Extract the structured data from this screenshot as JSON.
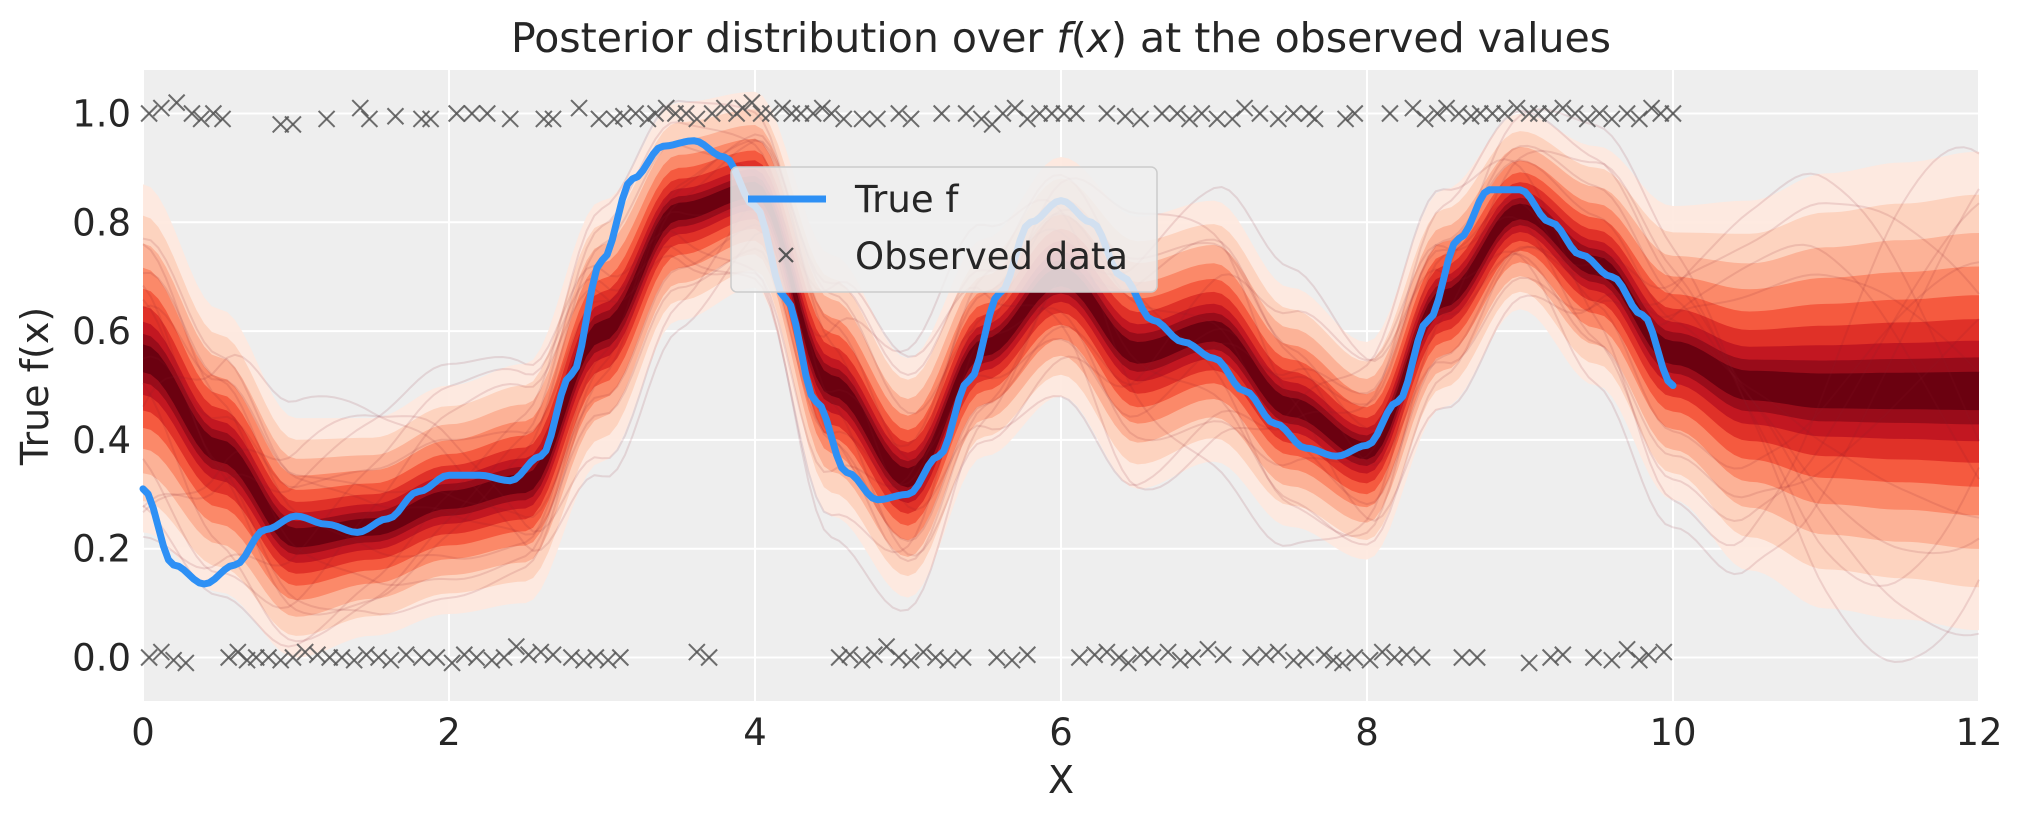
{
  "chart_data": {
    "type": "line",
    "title_parts": [
      "Posterior distribution over ",
      "f",
      "(",
      "x",
      ")",
      " at the observed values"
    ],
    "xlabel": "X",
    "ylabel": "True f(x)",
    "xlim": [
      0,
      12
    ],
    "ylim": [
      -0.08,
      1.08
    ],
    "xticks": [
      0,
      2,
      4,
      6,
      8,
      10,
      12
    ],
    "xtick_labels": [
      "0",
      "2",
      "4",
      "6",
      "8",
      "10",
      "12"
    ],
    "yticks": [
      0.0,
      0.2,
      0.4,
      0.6,
      0.8,
      1.0
    ],
    "ytick_labels": [
      "0.0",
      "0.2",
      "0.4",
      "0.6",
      "0.8",
      "1.0"
    ],
    "grid": true,
    "legend_position": "upper-center",
    "legend": [
      {
        "label": "True f",
        "kind": "line"
      },
      {
        "label": "Observed data",
        "kind": "marker"
      }
    ],
    "colors": {
      "background": "#eeeeee",
      "grid": "#ffffff",
      "true_f": "#2e90f5",
      "observed": "#555555",
      "band_light": "#fde3d9",
      "band_mid": "#f0492f",
      "band_dark": "#6b0011",
      "sample_lines": "#8b2030"
    },
    "true_f": {
      "name": "True f",
      "x": [
        0,
        0.2,
        0.4,
        0.6,
        0.8,
        1.0,
        1.2,
        1.4,
        1.6,
        1.8,
        2.0,
        2.2,
        2.4,
        2.6,
        2.8,
        3.0,
        3.2,
        3.4,
        3.6,
        3.8,
        4.0,
        4.2,
        4.4,
        4.6,
        4.8,
        5.0,
        5.2,
        5.4,
        5.6,
        5.8,
        6.0,
        6.2,
        6.4,
        6.6,
        6.8,
        7.0,
        7.2,
        7.4,
        7.6,
        7.8,
        8.0,
        8.2,
        8.4,
        8.6,
        8.8,
        9.0,
        9.2,
        9.4,
        9.6,
        9.8,
        10.0
      ],
      "y": [
        0.31,
        0.17,
        0.135,
        0.17,
        0.235,
        0.26,
        0.245,
        0.23,
        0.255,
        0.305,
        0.335,
        0.335,
        0.325,
        0.37,
        0.52,
        0.73,
        0.88,
        0.94,
        0.95,
        0.92,
        0.83,
        0.66,
        0.47,
        0.34,
        0.29,
        0.3,
        0.37,
        0.51,
        0.67,
        0.8,
        0.84,
        0.8,
        0.7,
        0.62,
        0.58,
        0.55,
        0.49,
        0.43,
        0.385,
        0.37,
        0.39,
        0.47,
        0.62,
        0.77,
        0.86,
        0.86,
        0.8,
        0.74,
        0.7,
        0.63,
        0.5
      ]
    },
    "posterior": {
      "x": [
        0,
        0.5,
        1.0,
        1.5,
        2.0,
        2.5,
        3.0,
        3.5,
        4.0,
        4.5,
        5.0,
        5.5,
        6.0,
        6.5,
        7.0,
        7.5,
        8.0,
        8.5,
        9.0,
        9.5,
        10.0,
        10.5,
        11.0,
        11.5,
        12.0
      ],
      "median": [
        0.55,
        0.38,
        0.22,
        0.24,
        0.29,
        0.32,
        0.6,
        0.82,
        0.86,
        0.5,
        0.33,
        0.57,
        0.7,
        0.56,
        0.6,
        0.46,
        0.38,
        0.66,
        0.82,
        0.72,
        0.56,
        0.5,
        0.49,
        0.49,
        0.49
      ],
      "halfwidth": [
        0.32,
        0.26,
        0.22,
        0.2,
        0.21,
        0.22,
        0.24,
        0.2,
        0.18,
        0.24,
        0.22,
        0.2,
        0.22,
        0.25,
        0.24,
        0.22,
        0.2,
        0.2,
        0.18,
        0.22,
        0.27,
        0.34,
        0.4,
        0.42,
        0.44
      ]
    },
    "observed": {
      "name": "Observed data",
      "points": [
        [
          0.04,
          1.0
        ],
        [
          0.12,
          1.01
        ],
        [
          0.22,
          1.02
        ],
        [
          0.32,
          1.0
        ],
        [
          0.38,
          0.99
        ],
        [
          0.46,
          1.0
        ],
        [
          0.52,
          0.99
        ],
        [
          0.9,
          0.98
        ],
        [
          0.98,
          0.98
        ],
        [
          1.2,
          0.99
        ],
        [
          1.42,
          1.01
        ],
        [
          1.48,
          0.99
        ],
        [
          1.65,
          0.995
        ],
        [
          1.82,
          0.99
        ],
        [
          1.88,
          0.99
        ],
        [
          2.05,
          1.0
        ],
        [
          2.15,
          1.0
        ],
        [
          2.25,
          1.0
        ],
        [
          2.4,
          0.99
        ],
        [
          2.62,
          0.99
        ],
        [
          2.68,
          0.99
        ],
        [
          2.85,
          1.01
        ],
        [
          2.98,
          0.99
        ],
        [
          3.08,
          0.99
        ],
        [
          3.14,
          0.995
        ],
        [
          3.22,
          1.0
        ],
        [
          3.3,
          0.99
        ],
        [
          3.35,
          1.0
        ],
        [
          3.42,
          1.01
        ],
        [
          3.48,
          1.0
        ],
        [
          3.55,
          1.0
        ],
        [
          3.62,
          0.99
        ],
        [
          3.72,
          1.0
        ],
        [
          3.8,
          1.01
        ],
        [
          3.88,
          1.0
        ],
        [
          3.92,
          1.01
        ],
        [
          3.98,
          1.02
        ],
        [
          4.04,
          1.0
        ],
        [
          4.1,
          1.0
        ],
        [
          4.18,
          1.01
        ],
        [
          4.24,
          1.0
        ],
        [
          4.3,
          1.0
        ],
        [
          4.38,
          1.0
        ],
        [
          4.44,
          1.01
        ],
        [
          4.5,
          1.0
        ],
        [
          4.58,
          0.99
        ],
        [
          4.7,
          0.99
        ],
        [
          4.8,
          0.99
        ],
        [
          4.94,
          1.0
        ],
        [
          5.02,
          0.99
        ],
        [
          5.22,
          1.0
        ],
        [
          5.38,
          1.0
        ],
        [
          5.48,
          0.99
        ],
        [
          5.55,
          0.98
        ],
        [
          5.62,
          1.0
        ],
        [
          5.7,
          1.01
        ],
        [
          5.78,
          0.99
        ],
        [
          5.86,
          1.0
        ],
        [
          5.94,
          1.0
        ],
        [
          6.02,
          1.0
        ],
        [
          6.1,
          1.0
        ],
        [
          6.3,
          1.0
        ],
        [
          6.42,
          0.995
        ],
        [
          6.52,
          0.99
        ],
        [
          6.66,
          1.0
        ],
        [
          6.76,
          1.0
        ],
        [
          6.84,
          0.99
        ],
        [
          6.92,
          1.0
        ],
        [
          7.02,
          0.99
        ],
        [
          7.12,
          0.99
        ],
        [
          7.2,
          1.01
        ],
        [
          7.3,
          1.0
        ],
        [
          7.42,
          0.99
        ],
        [
          7.52,
          1.0
        ],
        [
          7.62,
          1.0
        ],
        [
          7.66,
          0.99
        ],
        [
          7.86,
          0.99
        ],
        [
          7.92,
          1.0
        ],
        [
          8.15,
          1.0
        ],
        [
          8.3,
          1.01
        ],
        [
          8.38,
          0.99
        ],
        [
          8.46,
          1.0
        ],
        [
          8.52,
          1.01
        ],
        [
          8.6,
          1.0
        ],
        [
          8.68,
          0.995
        ],
        [
          8.74,
          1.0
        ],
        [
          8.82,
          1.0
        ],
        [
          8.9,
          1.0
        ],
        [
          8.98,
          1.01
        ],
        [
          9.06,
          1.0
        ],
        [
          9.12,
          1.0
        ],
        [
          9.2,
          1.0
        ],
        [
          9.28,
          1.01
        ],
        [
          9.36,
          1.0
        ],
        [
          9.44,
          0.99
        ],
        [
          9.52,
          1.0
        ],
        [
          9.6,
          0.99
        ],
        [
          9.7,
          1.0
        ],
        [
          9.78,
          0.99
        ],
        [
          9.86,
          1.01
        ],
        [
          9.92,
          1.0
        ],
        [
          10.0,
          1.0
        ],
        [
          0.04,
          0.0
        ],
        [
          0.12,
          0.01
        ],
        [
          0.2,
          -0.005
        ],
        [
          0.28,
          -0.01
        ],
        [
          0.56,
          0.0
        ],
        [
          0.62,
          0.01
        ],
        [
          0.68,
          -0.005
        ],
        [
          0.74,
          0.0
        ],
        [
          0.82,
          0.0
        ],
        [
          0.9,
          -0.005
        ],
        [
          0.98,
          0.0
        ],
        [
          1.06,
          0.01
        ],
        [
          1.14,
          0.005
        ],
        [
          1.22,
          0.0
        ],
        [
          1.3,
          0.0
        ],
        [
          1.38,
          -0.005
        ],
        [
          1.46,
          0.005
        ],
        [
          1.54,
          0.0
        ],
        [
          1.62,
          -0.005
        ],
        [
          1.72,
          0.005
        ],
        [
          1.82,
          0.0
        ],
        [
          1.92,
          0.0
        ],
        [
          2.02,
          -0.01
        ],
        [
          2.1,
          0.005
        ],
        [
          2.18,
          0.0
        ],
        [
          2.28,
          -0.005
        ],
        [
          2.36,
          0.0
        ],
        [
          2.44,
          0.02
        ],
        [
          2.52,
          0.005
        ],
        [
          2.6,
          0.01
        ],
        [
          2.68,
          0.005
        ],
        [
          2.8,
          0.0
        ],
        [
          2.88,
          -0.005
        ],
        [
          2.96,
          0.0
        ],
        [
          3.04,
          -0.005
        ],
        [
          3.12,
          0.0
        ],
        [
          3.62,
          0.01
        ],
        [
          3.7,
          0.0
        ],
        [
          4.55,
          0.0
        ],
        [
          4.62,
          0.005
        ],
        [
          4.7,
          -0.005
        ],
        [
          4.78,
          0.005
        ],
        [
          4.86,
          0.02
        ],
        [
          4.94,
          0.0
        ],
        [
          5.02,
          -0.005
        ],
        [
          5.1,
          0.01
        ],
        [
          5.18,
          0.0
        ],
        [
          5.26,
          -0.005
        ],
        [
          5.36,
          0.0
        ],
        [
          5.58,
          0.0
        ],
        [
          5.68,
          -0.005
        ],
        [
          5.78,
          0.005
        ],
        [
          6.12,
          0.0
        ],
        [
          6.22,
          0.005
        ],
        [
          6.3,
          0.01
        ],
        [
          6.38,
          0.0
        ],
        [
          6.44,
          -0.01
        ],
        [
          6.52,
          0.005
        ],
        [
          6.6,
          0.0
        ],
        [
          6.7,
          0.01
        ],
        [
          6.78,
          -0.005
        ],
        [
          6.86,
          0.0
        ],
        [
          6.96,
          0.015
        ],
        [
          7.06,
          0.005
        ],
        [
          7.24,
          0.0
        ],
        [
          7.34,
          0.005
        ],
        [
          7.42,
          0.01
        ],
        [
          7.52,
          -0.005
        ],
        [
          7.6,
          0.0
        ],
        [
          7.72,
          0.005
        ],
        [
          7.78,
          -0.005
        ],
        [
          7.84,
          -0.01
        ],
        [
          7.92,
          0.0
        ],
        [
          8.02,
          -0.005
        ],
        [
          8.1,
          0.01
        ],
        [
          8.18,
          0.0
        ],
        [
          8.26,
          0.005
        ],
        [
          8.36,
          0.0
        ],
        [
          8.62,
          0.0
        ],
        [
          8.72,
          0.0
        ],
        [
          9.06,
          -0.01
        ],
        [
          9.2,
          0.0
        ],
        [
          9.28,
          0.005
        ],
        [
          9.48,
          0.0
        ],
        [
          9.6,
          -0.005
        ],
        [
          9.7,
          0.015
        ],
        [
          9.78,
          -0.005
        ],
        [
          9.84,
          0.005
        ],
        [
          9.94,
          0.01
        ]
      ]
    }
  }
}
